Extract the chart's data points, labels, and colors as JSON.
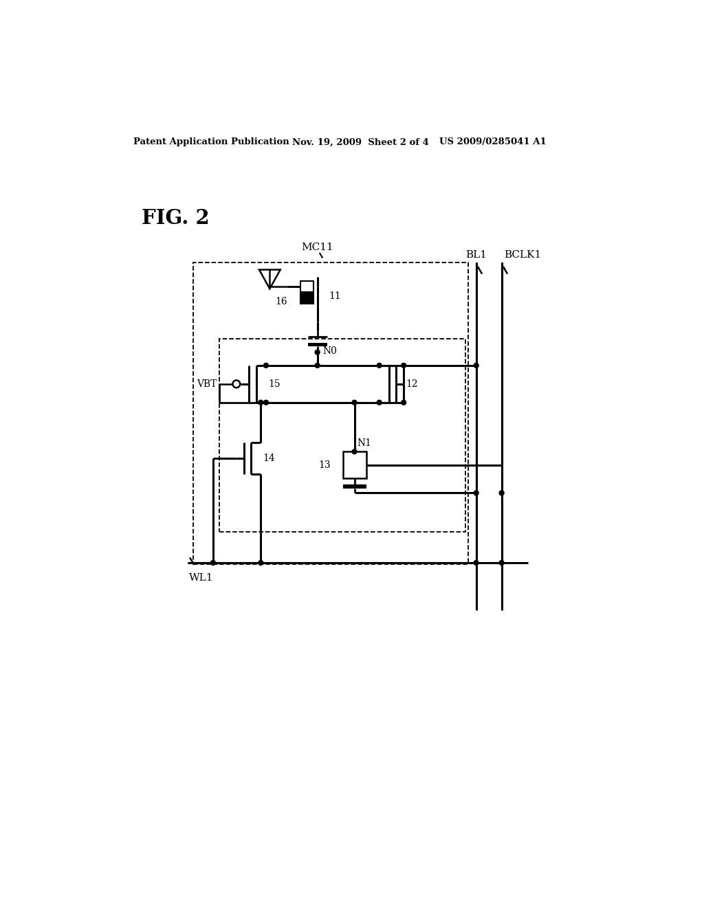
{
  "header_left": "Patent Application Publication",
  "header_center": "Nov. 19, 2009  Sheet 2 of 4",
  "header_right": "US 2009/0285041 A1",
  "background_color": "#ffffff",
  "fig_label": "FIG. 2",
  "mc11_label": "MC11",
  "bl1_label": "BL1",
  "bclk1_label": "BCLK1",
  "wl1_label": "WL1",
  "vbt_label": "VBT",
  "n0_label": "N0",
  "n1_label": "N1",
  "label_11": "11",
  "label_12": "12",
  "label_13": "13",
  "label_14": "14",
  "label_15": "15",
  "label_16": "16"
}
